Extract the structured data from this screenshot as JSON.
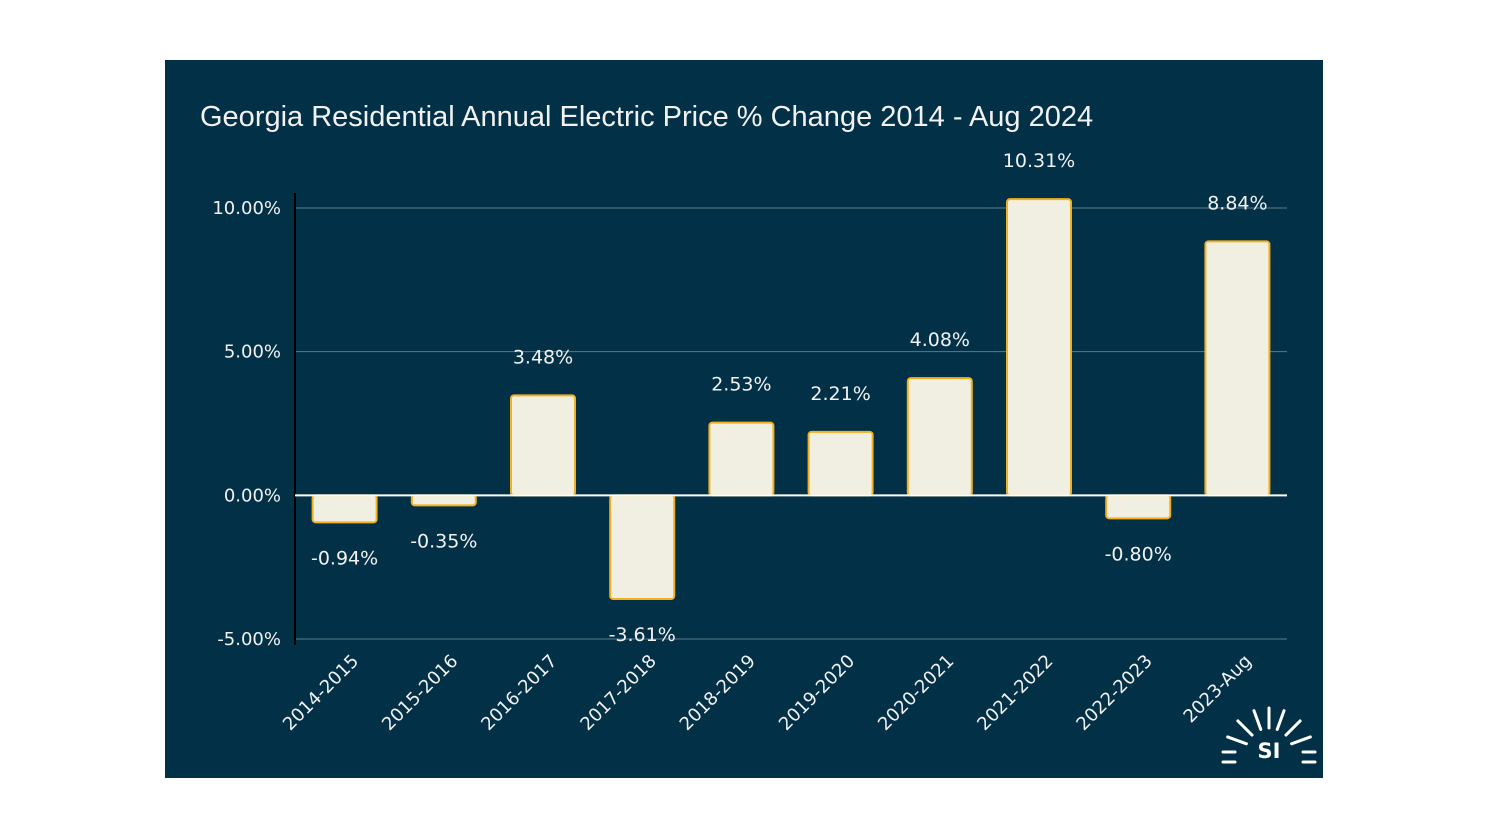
{
  "chart_data": {
    "type": "bar",
    "title": "Georgia Residential Annual Electric Price % Change 2014 - Aug 2024",
    "xlabel": "",
    "ylabel": "",
    "categories": [
      "2014-2015",
      "2015-2016",
      "2016-2017",
      "2017-2018",
      "2018-2019",
      "2019-2020",
      "2020-2021",
      "2021-2022",
      "2022-2023",
      "2023-Aug"
    ],
    "values": [
      -0.94,
      -0.35,
      3.48,
      -3.61,
      2.53,
      2.21,
      4.08,
      10.31,
      -0.8,
      8.84
    ],
    "data_labels": [
      "-0.94%",
      "-0.35%",
      "3.48%",
      "-3.61%",
      "2.53%",
      "2.21%",
      "4.08%",
      "10.31%",
      "-0.80%",
      "8.84%"
    ],
    "ylim": [
      -5,
      10
    ],
    "yticks": [
      -5,
      0,
      5,
      10
    ],
    "ytick_labels": [
      "-5.00%",
      "0.00%",
      "5.00%",
      "10.00%"
    ],
    "grid": true,
    "legend": "none",
    "colors": {
      "background": "#023047",
      "bar_fill": "#f1efe2",
      "bar_stroke": "#f2b01e",
      "gridline": "#5c7a89",
      "text": "#f2f2f2"
    }
  },
  "logo": {
    "text": "SI",
    "icon": "sun-rays-icon"
  }
}
